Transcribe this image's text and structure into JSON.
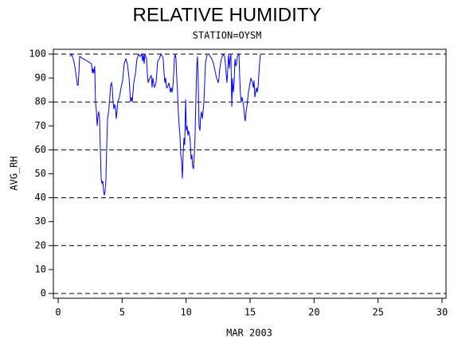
{
  "chart_data": {
    "type": "line",
    "title": "RELATIVE HUMIDITY",
    "subtitle": "STATION=OYSM",
    "x_label": "MAR 2003",
    "y_label": "AVG_RH",
    "xlim": [
      0,
      30
    ],
    "xticks": [
      0,
      5,
      10,
      15,
      20,
      25,
      30
    ],
    "ylim": [
      0,
      100
    ],
    "yticks": [
      0,
      10,
      20,
      30,
      40,
      50,
      60,
      70,
      80,
      90,
      100
    ],
    "grid": true,
    "grid_values": [
      0,
      20,
      40,
      60,
      80,
      100
    ],
    "series": [
      {
        "color": "#0000ff",
        "x": [
          0.93,
          1.06,
          1.18,
          1.3,
          1.43,
          1.5,
          1.56,
          1.62,
          1.68,
          1.99,
          2.3,
          2.6,
          2.68,
          2.74,
          2.8,
          2.86,
          2.92,
          2.99,
          3.05,
          3.11,
          3.17,
          3.24,
          3.3,
          3.36,
          3.42,
          3.49,
          3.55,
          3.61,
          3.67,
          3.73,
          3.8,
          3.86,
          3.92,
          3.98,
          4.04,
          4.1,
          4.17,
          4.23,
          4.29,
          4.36,
          4.42,
          4.48,
          4.54,
          4.6,
          4.67,
          4.79,
          4.92,
          5.04,
          5.16,
          5.29,
          5.41,
          5.54,
          5.66,
          5.72,
          5.79,
          5.91,
          6.04,
          6.16,
          6.29,
          6.41,
          6.54,
          6.6,
          6.66,
          6.72,
          6.78,
          6.91,
          6.97,
          7.03,
          7.16,
          7.28,
          7.34,
          7.4,
          7.53,
          7.65,
          7.78,
          7.9,
          8.03,
          8.15,
          8.21,
          8.28,
          8.34,
          8.4,
          8.46,
          8.53,
          8.65,
          8.77,
          8.84,
          8.9,
          8.96,
          9.02,
          9.08,
          9.15,
          9.21,
          9.27,
          9.33,
          9.39,
          9.46,
          9.52,
          9.58,
          9.64,
          9.71,
          9.77,
          9.83,
          9.89,
          9.96,
          10.02,
          10.08,
          10.14,
          10.2,
          10.27,
          10.33,
          10.39,
          10.45,
          10.51,
          10.58,
          10.64,
          10.7,
          10.76,
          10.83,
          10.89,
          10.95,
          11.01,
          11.08,
          11.14,
          11.2,
          11.26,
          11.33,
          11.39,
          11.51,
          11.64,
          11.76,
          11.89,
          12.01,
          12.14,
          12.26,
          12.38,
          12.51,
          12.57,
          12.63,
          12.76,
          12.88,
          13.01,
          13.07,
          13.13,
          13.19,
          13.26,
          13.32,
          13.38,
          13.44,
          13.5,
          13.57,
          13.63,
          13.69,
          13.75,
          13.82,
          13.88,
          13.94,
          14.0,
          14.13,
          14.19,
          14.25,
          14.31,
          14.37,
          14.44,
          14.5,
          14.56,
          14.62,
          14.69,
          14.75,
          14.87,
          15.0,
          15.06,
          15.12,
          15.18,
          15.25,
          15.31,
          15.37,
          15.43,
          15.49,
          15.56,
          15.62,
          15.68,
          15.74,
          15.81
        ],
        "values": [
          99,
          100,
          98,
          95,
          90,
          87,
          87,
          92,
          99,
          98,
          97,
          96,
          92,
          94,
          92,
          95,
          80,
          76,
          70,
          74,
          76,
          73,
          60,
          48,
          46,
          47,
          43,
          41,
          43,
          47,
          62,
          73,
          75,
          78,
          82,
          87,
          88,
          86,
          80,
          77,
          79,
          78,
          73,
          76,
          80,
          82,
          86,
          89,
          96,
          98,
          96,
          90,
          80,
          82,
          80,
          88,
          92,
          98,
          100,
          99,
          100,
          97,
          100,
          96,
          100,
          98,
          92,
          88,
          90,
          91,
          86,
          90,
          86,
          88,
          97,
          98,
          100,
          99,
          98,
          92,
          88,
          90,
          86,
          86,
          88,
          84,
          86,
          84,
          86,
          91,
          98,
          100,
          98,
          90,
          84,
          76,
          70,
          66,
          58,
          56,
          48,
          58,
          65,
          62,
          81,
          68,
          70,
          66,
          68,
          66,
          63,
          56,
          58,
          53,
          52,
          58,
          66,
          80,
          95,
          99,
          88,
          70,
          68,
          74,
          76,
          73,
          76,
          80,
          96,
          100,
          100,
          99,
          98,
          96,
          93,
          90,
          88,
          90,
          94,
          98,
          100,
          99,
          96,
          92,
          88,
          94,
          100,
          94,
          98,
          100,
          78,
          90,
          84,
          88,
          98,
          95,
          96,
          99,
          100,
          90,
          83,
          80,
          82,
          80,
          78,
          74,
          72,
          76,
          78,
          84,
          88,
          90,
          89,
          88,
          86,
          89,
          82,
          84,
          86,
          84,
          86,
          91,
          96,
          100
        ]
      }
    ]
  }
}
